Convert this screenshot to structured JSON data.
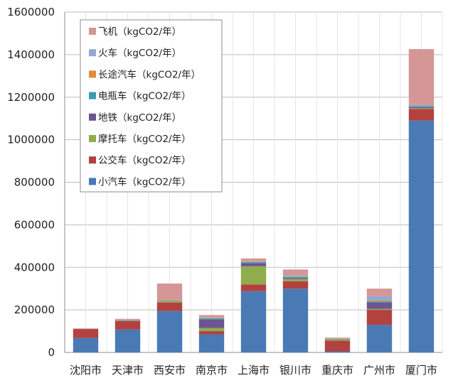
{
  "chart_data": {
    "type": "bar",
    "stacked": true,
    "categories": [
      "沈阳市",
      "天津市",
      "西安市",
      "南京市",
      "上海市",
      "银川市",
      "重庆市",
      "广州市",
      "厦门市"
    ],
    "ylim": [
      0,
      1600000
    ],
    "yticks": [
      "0",
      "200000",
      "400000",
      "600000",
      "800000",
      "1000000",
      "1200000",
      "1400000",
      "1600000"
    ],
    "grid": "horizontal",
    "legend_position": "top-left",
    "series": [
      {
        "name": "小汽车（kgCO2/年）",
        "color": "#4a7ab4",
        "values": [
          68000,
          108000,
          195000,
          85000,
          288000,
          300000,
          5000,
          130000,
          1090000
        ]
      },
      {
        "name": "公交车（kgCO2/年）",
        "color": "#b34140",
        "values": [
          42000,
          40000,
          40000,
          15000,
          32000,
          35000,
          50000,
          70000,
          55000
        ]
      },
      {
        "name": "摩托车（kgCO2/年）",
        "color": "#8fad4d",
        "values": [
          0,
          0,
          5000,
          15000,
          85000,
          10000,
          5000,
          5000,
          3000
        ]
      },
      {
        "name": "地铁（kgCO2/年）",
        "color": "#6c5593",
        "values": [
          0,
          0,
          0,
          40000,
          15000,
          5000,
          0,
          30000,
          5000
        ]
      },
      {
        "name": "电瓶车（kgCO2/年）",
        "color": "#3a9ab3",
        "values": [
          0,
          2000,
          2000,
          5000,
          5000,
          5000,
          2000,
          5000,
          5000
        ]
      },
      {
        "name": "长途汽车（kgCO2/年）",
        "color": "#e08d3b",
        "values": [
          0,
          2000,
          2000,
          3000,
          2000,
          2000,
          2000,
          5000,
          3000
        ]
      },
      {
        "name": "火车（kgCO2/年）",
        "color": "#93a9ce",
        "values": [
          0,
          3000,
          2000,
          3000,
          2000,
          5000,
          2000,
          20000,
          5000
        ]
      },
      {
        "name": "飞机（kgCO2/年）",
        "color": "#d49796",
        "values": [
          3000,
          3000,
          78000,
          10000,
          13000,
          28000,
          4000,
          35000,
          260000
        ]
      }
    ]
  }
}
